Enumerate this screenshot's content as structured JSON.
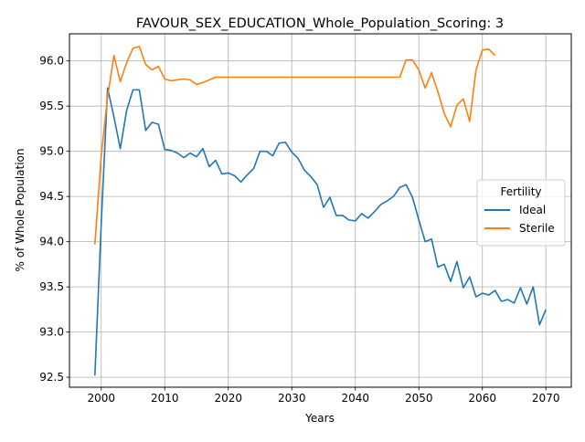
{
  "chart_data": {
    "type": "line",
    "title": "FAVOUR_SEX_EDUCATION_Whole_Population_Scoring: 3",
    "xlabel": "Years",
    "ylabel": "% of Whole Population",
    "xlim": [
      1995,
      2074
    ],
    "ylim": [
      92.39,
      96.3
    ],
    "xticks": [
      2000,
      2010,
      2020,
      2030,
      2040,
      2050,
      2060,
      2070
    ],
    "yticks": [
      92.5,
      93.0,
      93.5,
      94.0,
      94.5,
      95.0,
      95.5,
      96.0
    ],
    "xtick_labels": [
      "2000",
      "2010",
      "2020",
      "2030",
      "2040",
      "2050",
      "2060",
      "2070"
    ],
    "ytick_labels": [
      "92.5",
      "93.0",
      "93.5",
      "94.0",
      "94.5",
      "95.0",
      "95.5",
      "96.0"
    ],
    "grid": true,
    "legend": {
      "title": "Fertility",
      "placement": "center-right"
    },
    "series": [
      {
        "name": "Ideal",
        "color": "#1f77b4",
        "x": [
          1999,
          2000,
          2001,
          2002,
          2003,
          2004,
          2005,
          2006,
          2007,
          2008,
          2009,
          2010,
          2011,
          2012,
          2013,
          2014,
          2015,
          2016,
          2017,
          2018,
          2019,
          2020,
          2021,
          2022,
          2023,
          2024,
          2025,
          2026,
          2027,
          2028,
          2029,
          2030,
          2031,
          2032,
          2033,
          2034,
          2035,
          2036,
          2037,
          2038,
          2039,
          2040,
          2041,
          2042,
          2043,
          2044,
          2045,
          2046,
          2047,
          2048,
          2049,
          2050,
          2051,
          2052,
          2053,
          2054,
          2055,
          2056,
          2057,
          2058,
          2059,
          2060,
          2061,
          2062,
          2063,
          2064,
          2065,
          2066,
          2067,
          2068,
          2069,
          2070
        ],
        "y": [
          92.52,
          94.2,
          95.7,
          95.38,
          95.03,
          95.45,
          95.68,
          95.68,
          95.23,
          95.32,
          95.3,
          95.02,
          95.01,
          94.98,
          94.93,
          94.98,
          94.94,
          95.03,
          94.83,
          94.9,
          94.75,
          94.76,
          94.73,
          94.66,
          94.74,
          94.81,
          95.0,
          95.0,
          94.95,
          95.09,
          95.1,
          94.99,
          94.92,
          94.79,
          94.72,
          94.63,
          94.38,
          94.49,
          94.29,
          94.29,
          94.24,
          94.23,
          94.31,
          94.26,
          94.33,
          94.41,
          94.45,
          94.5,
          94.6,
          94.63,
          94.49,
          94.24,
          94.0,
          94.03,
          93.72,
          93.75,
          93.56,
          93.78,
          93.49,
          93.61,
          93.39,
          93.43,
          93.41,
          93.46,
          93.34,
          93.36,
          93.32,
          93.49,
          93.31,
          93.5,
          93.08,
          93.25
        ]
      },
      {
        "name": "Sterile",
        "color": "#ff7f0e",
        "x": [
          1999,
          2000,
          2001,
          2002,
          2003,
          2004,
          2005,
          2006,
          2007,
          2008,
          2009,
          2010,
          2011,
          2012,
          2013,
          2014,
          2015,
          2016,
          2017,
          2018,
          2019,
          2020,
          2021,
          2022,
          2023,
          2024,
          2025,
          2026,
          2027,
          2028,
          2029,
          2030,
          2031,
          2032,
          2033,
          2034,
          2035,
          2036,
          2037,
          2038,
          2039,
          2040,
          2041,
          2042,
          2043,
          2044,
          2045,
          2046,
          2047,
          2048,
          2049,
          2050,
          2051,
          2052,
          2053,
          2054,
          2055,
          2056,
          2057,
          2058,
          2059,
          2060,
          2061,
          2062
        ],
        "y": [
          93.97,
          94.95,
          95.6,
          96.06,
          95.77,
          95.98,
          96.14,
          96.16,
          95.96,
          95.9,
          95.94,
          95.8,
          95.78,
          95.79,
          95.8,
          95.79,
          95.74,
          95.76,
          95.79,
          95.82,
          95.82,
          95.82,
          95.82,
          95.82,
          95.82,
          95.82,
          95.82,
          95.82,
          95.82,
          95.82,
          95.82,
          95.82,
          95.82,
          95.82,
          95.82,
          95.82,
          95.82,
          95.82,
          95.82,
          95.82,
          95.82,
          95.82,
          95.82,
          95.82,
          95.82,
          95.82,
          95.82,
          95.82,
          95.82,
          96.01,
          96.01,
          95.9,
          95.7,
          95.87,
          95.66,
          95.42,
          95.27,
          95.51,
          95.58,
          95.33,
          95.9,
          96.12,
          96.13,
          96.06
        ]
      }
    ]
  }
}
